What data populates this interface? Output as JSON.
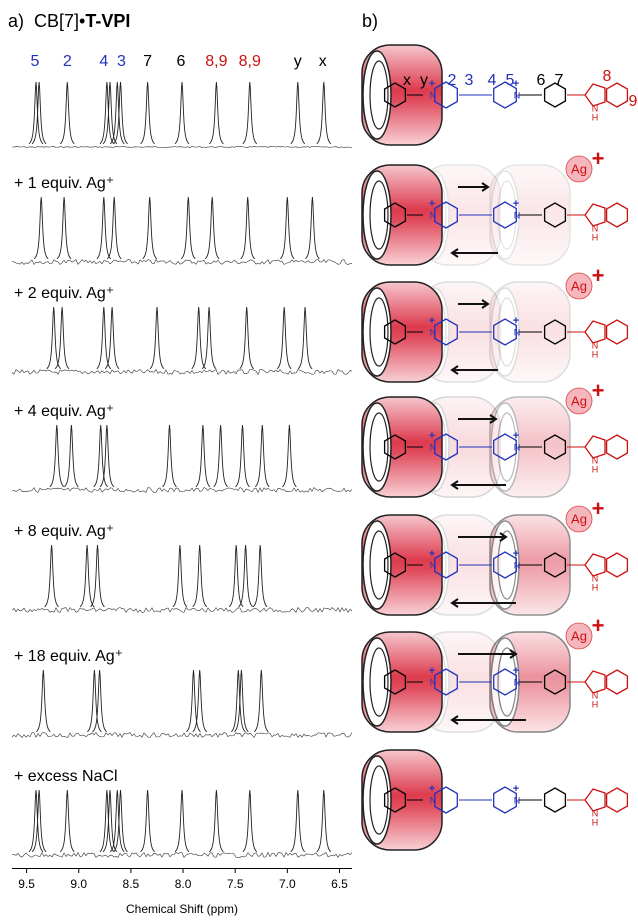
{
  "panel_a": {
    "label": "a)",
    "title_prefix": "CB[7]•",
    "title_bold": "T-VPI",
    "xlim": [
      9.64,
      6.38
    ],
    "xticks": [
      9.5,
      {
        "value": 9,
        "label": "9.0"
      },
      8.5,
      {
        "value": 8,
        "label": "8.0"
      },
      7.5,
      {
        "value": 7,
        "label": "7.0"
      },
      6.5
    ],
    "xlabel": "Chemical Shift (ppm)",
    "peak_labels": [
      {
        "text": "5",
        "ppm": 9.42,
        "color": "#2233bb"
      },
      {
        "text": "2",
        "ppm": 9.11,
        "color": "#2233bb"
      },
      {
        "text": "4",
        "ppm": 8.76,
        "color": "#2233bb"
      },
      {
        "text": "3",
        "ppm": 8.59,
        "color": "#2233bb"
      },
      {
        "text": "7",
        "ppm": 8.34,
        "color": "#000000"
      },
      {
        "text": "6",
        "ppm": 8.02,
        "color": "#000000"
      },
      {
        "text": "8,9",
        "ppm": 7.68,
        "color": "#cc1111"
      },
      {
        "text": "8,9",
        "ppm": 7.36,
        "color": "#cc1111"
      },
      {
        "text": "y",
        "ppm": 6.9,
        "color": "#000000"
      },
      {
        "text": "x",
        "ppm": 6.66,
        "color": "#000000"
      }
    ],
    "spectra": [
      {
        "label": null,
        "peaks": [
          9.41,
          9.38,
          9.11,
          8.73,
          8.7,
          8.63,
          8.6,
          8.34,
          8.01,
          7.68,
          7.36,
          6.9,
          6.65
        ]
      },
      {
        "label": "+ 1 equiv. Ag⁺",
        "peaks": [
          9.36,
          9.14,
          8.76,
          8.66,
          8.32,
          7.95,
          7.72,
          7.38,
          7.0,
          6.76
        ]
      },
      {
        "label": "+ 2 equiv. Ag⁺",
        "peaks": [
          9.24,
          9.16,
          8.76,
          8.68,
          8.25,
          7.85,
          7.75,
          7.39,
          7.03,
          6.83
        ]
      },
      {
        "label": "+ 4 equiv. Ag⁺",
        "peaks": [
          9.21,
          9.07,
          8.79,
          8.73,
          8.13,
          7.81,
          7.64,
          7.43,
          7.24,
          6.98
        ]
      },
      {
        "label": "+ 8 equiv. Ag⁺",
        "peaks": [
          9.26,
          8.92,
          8.82,
          8.03,
          7.84,
          7.49,
          7.4,
          7.26
        ]
      },
      {
        "label": "+ 18 equiv. Ag⁺",
        "peaks": [
          9.34,
          8.85,
          8.8,
          7.9,
          7.84,
          7.47,
          7.44,
          7.25
        ]
      },
      {
        "label": "+ excess NaCl",
        "peaks": [
          9.41,
          9.38,
          9.11,
          8.73,
          8.7,
          8.63,
          8.6,
          8.34,
          8.01,
          7.68,
          7.36,
          6.9,
          6.65
        ]
      }
    ]
  },
  "panel_b": {
    "label": "b)",
    "position_labels": [
      {
        "text": "x",
        "color": "#000000"
      },
      {
        "text": "y",
        "color": "#000000"
      },
      {
        "text": "2",
        "color": "#2233bb"
      },
      {
        "text": "3",
        "color": "#2233bb"
      },
      {
        "text": "4",
        "color": "#2233bb"
      },
      {
        "text": "5",
        "color": "#2233bb"
      },
      {
        "text": "6",
        "color": "#000000"
      },
      {
        "text": "7",
        "color": "#000000"
      },
      {
        "text": "8",
        "color": "#cc1111"
      },
      {
        "text": "9",
        "color": "#cc1111"
      }
    ],
    "ion": "Ag",
    "charge": "+",
    "atom_n": "N",
    "atom_h": "H"
  }
}
